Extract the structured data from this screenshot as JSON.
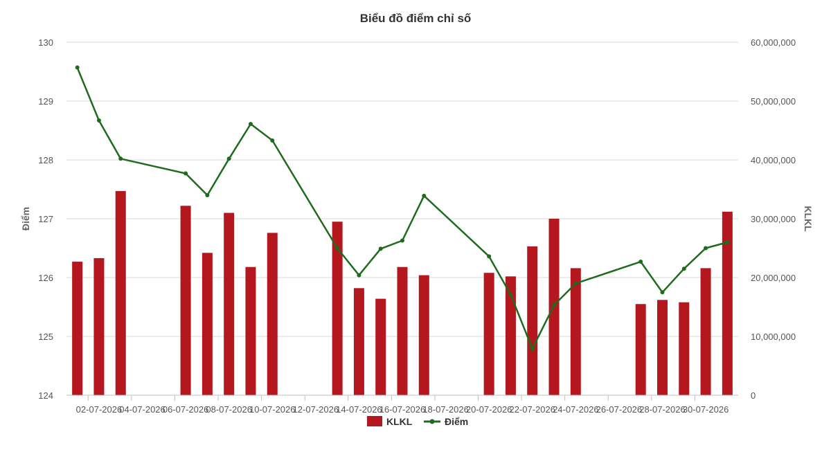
{
  "chart_data": {
    "type": "bar",
    "title": "Biểu đồ điểm chỉ số",
    "ylabel_left": "Điểm",
    "ylabel_right": "KLKL",
    "ylim_left": [
      124,
      130
    ],
    "ylim_right": [
      0,
      60000000
    ],
    "yticks_left": [
      "124",
      "125",
      "126",
      "127",
      "128",
      "129",
      "130"
    ],
    "yticks_right": [
      "0",
      "10,000,000",
      "20,000,000",
      "30,000,000",
      "40,000,000",
      "50,000,000",
      "60,000,000"
    ],
    "xticks": [
      "02-07-2026",
      "04-07-2026",
      "06-07-2026",
      "08-07-2026",
      "10-07-2026",
      "12-07-2026",
      "14-07-2026",
      "16-07-2026",
      "18-07-2026",
      "20-07-2026",
      "22-07-2026",
      "24-07-2026",
      "26-07-2026",
      "28-07-2026",
      "30-07-2026"
    ],
    "x": [
      "01-07-2026",
      "02-07-2026",
      "03-07-2026",
      "06-07-2026",
      "07-07-2026",
      "08-07-2026",
      "09-07-2026",
      "10-07-2026",
      "13-07-2026",
      "14-07-2026",
      "15-07-2026",
      "16-07-2026",
      "17-07-2026",
      "20-07-2026",
      "21-07-2026",
      "22-07-2026",
      "23-07-2026",
      "24-07-2026",
      "27-07-2026",
      "28-07-2026",
      "29-07-2026",
      "30-07-2026",
      "31-07-2026"
    ],
    "grid": true,
    "legend": "bottom",
    "series": [
      {
        "name": "KLKL",
        "type": "bar",
        "axis": "right",
        "color": "#b5171f",
        "values": [
          22700000,
          23300000,
          34700000,
          32200000,
          24200000,
          31000000,
          21800000,
          27600000,
          29500000,
          18200000,
          16400000,
          21800000,
          20400000,
          20800000,
          20200000,
          25300000,
          30000000,
          21600000,
          15500000,
          16200000,
          15800000,
          21600000,
          31200000
        ]
      },
      {
        "name": "Điểm",
        "type": "line",
        "axis": "left",
        "color": "#1e6b1e",
        "values": [
          129.57,
          128.67,
          128.02,
          127.77,
          127.4,
          128.02,
          128.61,
          128.33,
          126.5,
          126.04,
          126.49,
          126.63,
          127.39,
          126.36,
          125.71,
          124.79,
          125.53,
          125.9,
          126.27,
          125.75,
          126.15,
          126.5,
          126.6
        ]
      }
    ]
  }
}
